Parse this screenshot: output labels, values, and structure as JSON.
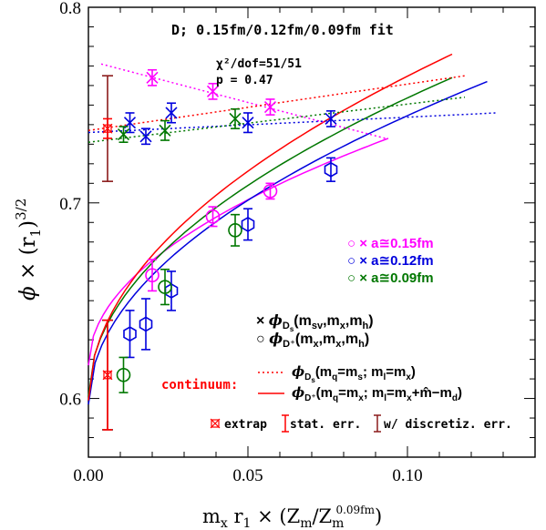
{
  "chart_data": {
    "type": "scatter",
    "title": "D;  0.15fm/0.12fm/0.09fm fit",
    "chi2_label": "χ²/dof=51/51",
    "p_label": "p = 0.47",
    "xlabel": "m_x r_1 × (Z_m/Z_m^{0.09fm})",
    "ylabel": "φ × (r_1)^{3/2}",
    "xlim": [
      0.0,
      0.14
    ],
    "ylim": [
      0.57,
      0.8
    ],
    "x_ticks": [
      0.0,
      0.05,
      0.1
    ],
    "x_tick_labels": [
      "0.00",
      "0.05",
      "0.10"
    ],
    "y_ticks": [
      0.6,
      0.7,
      0.8
    ],
    "y_tick_labels": [
      "0.6",
      "0.7",
      "0.8"
    ],
    "colors": {
      "a015": "#ff00ff",
      "a012": "#0000dd",
      "a009": "#007700",
      "continuum": "#ff0000",
      "extrap_dark": "#8b1a1a"
    },
    "legend_ensembles": [
      {
        "marker": "○ ×",
        "text": "a≅0.15fm",
        "color": "#ff00ff"
      },
      {
        "marker": "○ ×",
        "text": "a≅0.12fm",
        "color": "#0000dd"
      },
      {
        "marker": "○ ×",
        "text": "a≅0.09fm",
        "color": "#007700"
      }
    ],
    "legend_markers": [
      {
        "marker": "×",
        "text": "φ_{D_s}(m_sv,m_x,m_h)"
      },
      {
        "marker": "○",
        "text": "φ_{D⁺}(m_x,m_x,m_h)"
      }
    ],
    "continuum_label": "continuum:",
    "legend_continuum": [
      {
        "style": "dotted",
        "text": "φ_{D_s}(m_q=m_s; m_l=m_x)"
      },
      {
        "style": "solid",
        "text": "φ_{D⁺}(m_q=m_x; m_l=m_x+m̂−m_d)"
      }
    ],
    "legend_bottom": [
      {
        "text": "extrap"
      },
      {
        "text": "stat. err."
      },
      {
        "text": "w/ discretiz. err."
      }
    ],
    "series": [
      {
        "key": "dplus_015",
        "marker": "circle",
        "color": "#ff00ff",
        "points": [
          [
            0.02,
            0.663,
            0.008
          ],
          [
            0.039,
            0.693,
            0.005
          ],
          [
            0.057,
            0.706,
            0.004
          ]
        ]
      },
      {
        "key": "dplus_012",
        "marker": "hexagon",
        "color": "#0000dd",
        "points": [
          [
            0.013,
            0.633,
            0.012
          ],
          [
            0.018,
            0.638,
            0.013
          ],
          [
            0.026,
            0.655,
            0.01
          ],
          [
            0.05,
            0.689,
            0.008
          ],
          [
            0.076,
            0.717,
            0.006
          ]
        ]
      },
      {
        "key": "dplus_009",
        "marker": "circle",
        "color": "#007700",
        "points": [
          [
            0.011,
            0.612,
            0.009
          ],
          [
            0.024,
            0.657,
            0.009
          ],
          [
            0.046,
            0.686,
            0.008
          ]
        ]
      },
      {
        "key": "ds_015",
        "marker": "x",
        "color": "#ff00ff",
        "points": [
          [
            0.02,
            0.764,
            0.004
          ],
          [
            0.039,
            0.757,
            0.004
          ],
          [
            0.057,
            0.749,
            0.004
          ]
        ]
      },
      {
        "key": "ds_012",
        "marker": "x",
        "color": "#0000dd",
        "points": [
          [
            0.013,
            0.741,
            0.005
          ],
          [
            0.018,
            0.734,
            0.004
          ],
          [
            0.026,
            0.746,
            0.005
          ],
          [
            0.05,
            0.741,
            0.005
          ],
          [
            0.076,
            0.743,
            0.004
          ]
        ]
      },
      {
        "key": "ds_009",
        "marker": "x",
        "color": "#007700",
        "points": [
          [
            0.011,
            0.735,
            0.004
          ],
          [
            0.024,
            0.737,
            0.005
          ],
          [
            0.046,
            0.743,
            0.005
          ]
        ]
      }
    ],
    "extrapolations": [
      {
        "x": 0.006,
        "y": 0.738,
        "stat_err": 0.005,
        "full_err": 0.027
      },
      {
        "x": 0.006,
        "y": 0.612,
        "stat_err": 0.028,
        "full_err": 0.028
      }
    ],
    "curves": [
      {
        "key": "dplus_015_fit",
        "color": "#ff00ff",
        "style": "solid",
        "x": [
          0.0,
          0.094
        ],
        "y0": 0.617,
        "y1": 0.733
      },
      {
        "key": "dplus_012_fit",
        "color": "#0000dd",
        "style": "solid",
        "x": [
          0.0,
          0.125
        ],
        "y0": 0.597,
        "y1": 0.762
      },
      {
        "key": "dplus_009_fit",
        "color": "#007700",
        "style": "solid",
        "x": [
          0.0,
          0.114
        ],
        "y0": 0.601,
        "y1": 0.764
      },
      {
        "key": "dplus_cont_fit",
        "color": "#ff0000",
        "style": "solid",
        "x": [
          0.0,
          0.114
        ],
        "y0": 0.599,
        "y1": 0.776
      },
      {
        "key": "ds_015_fit",
        "color": "#ff00ff",
        "style": "dotted",
        "x": [
          0.004,
          0.093
        ],
        "y0": 0.771,
        "y1": 0.733
      },
      {
        "key": "ds_012_fit",
        "color": "#0000dd",
        "style": "dotted",
        "x": [
          0.0,
          0.128
        ],
        "y0": 0.736,
        "y1": 0.746
      },
      {
        "key": "ds_009_fit",
        "color": "#007700",
        "style": "dotted",
        "x": [
          0.0,
          0.118
        ],
        "y0": 0.731,
        "y1": 0.754
      },
      {
        "key": "ds_cont_fit",
        "color": "#ff0000",
        "style": "dotted",
        "x": [
          0.0,
          0.118
        ],
        "y0": 0.737,
        "y1": 0.765
      }
    ]
  }
}
